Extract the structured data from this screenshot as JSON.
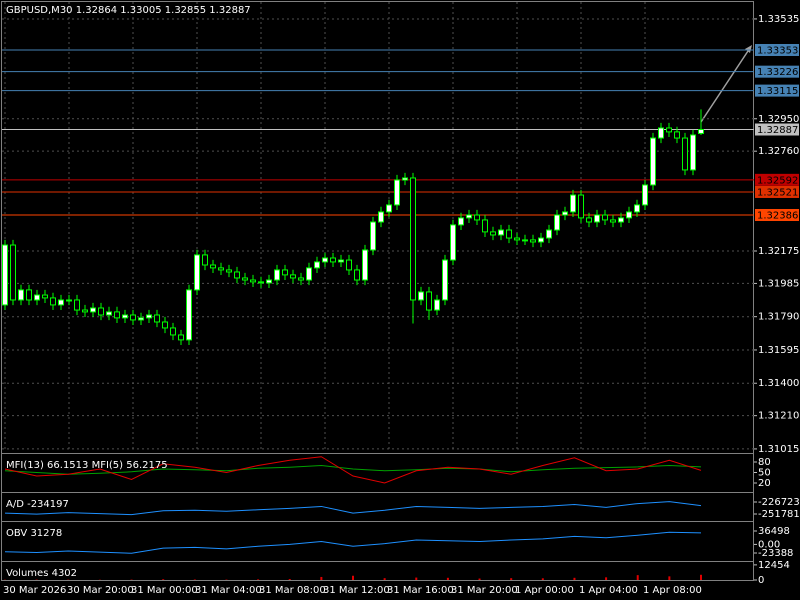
{
  "chart_data": [
    {
      "type": "candlestick",
      "title": "GBPUSD,M30  1.32864 1.33005 1.32855 1.32887",
      "categories": [
        "30 Mar 2026",
        null,
        null,
        null,
        null,
        null,
        null,
        null,
        "30 Mar 20:00",
        null,
        null,
        null,
        null,
        null,
        null,
        null,
        "31 Mar 00:00",
        null,
        null,
        null,
        null,
        null,
        null,
        null,
        "31 Mar 04:00",
        null,
        null,
        null,
        null,
        null,
        null,
        null,
        "31 Mar 08:00",
        null,
        null,
        null,
        null,
        null,
        null,
        null,
        "31 Mar 12:00",
        null,
        null,
        null,
        null,
        null,
        null,
        null,
        "31 Mar 16:00",
        null,
        null,
        null,
        null,
        null,
        null,
        null,
        "31 Mar 20:00",
        null,
        null,
        null,
        null,
        null,
        null,
        null,
        "1 Apr 00:00",
        null,
        null,
        null,
        null,
        null,
        null,
        null,
        "1 Apr 04:00",
        null,
        null,
        null,
        null,
        null,
        null,
        null,
        "1 Apr 08:00",
        null,
        null,
        null,
        null,
        null,
        null,
        null
      ],
      "open": [
        1.31859,
        1.3221,
        1.31888,
        1.31947,
        1.31888,
        1.31917,
        1.319,
        1.31859,
        1.31888,
        1.31888,
        1.31829,
        1.31818,
        1.31841,
        1.318,
        1.31818,
        1.31783,
        1.318,
        1.31771,
        1.31783,
        1.318,
        1.31759,
        1.31724,
        1.31683,
        1.31654,
        1.31947,
        1.32152,
        1.32093,
        1.32076,
        1.32064,
        1.32052,
        1.32017,
        1.32005,
        1.31994,
        1.31988,
        1.32005,
        1.32064,
        1.32035,
        1.32017,
        1.32005,
        1.32076,
        1.32111,
        1.32134,
        1.32111,
        1.32122,
        1.32064,
        1.32005,
        1.32181,
        1.32345,
        1.32404,
        1.32445,
        1.32591,
        1.32603,
        1.31888,
        1.31935,
        1.31829,
        1.31888,
        1.32122,
        1.32328,
        1.32369,
        1.32386,
        1.32357,
        1.32287,
        1.32269,
        1.32298,
        1.32251,
        1.3224,
        1.3224,
        1.32228,
        1.32251,
        1.32298,
        1.32386,
        1.32404,
        1.32503,
        1.32369,
        1.32345,
        1.32386,
        1.32357,
        1.32345,
        1.32369,
        1.32404,
        1.32445,
        1.32562,
        1.32837,
        1.32896,
        1.32873,
        1.32837,
        1.3265,
        1.32864
      ],
      "high": [
        1.3224,
        1.3224,
        1.31977,
        1.31977,
        1.31947,
        1.31947,
        1.3193,
        1.31918,
        1.31918,
        1.31918,
        1.31859,
        1.31871,
        1.31871,
        1.31848,
        1.31848,
        1.3183,
        1.3183,
        1.31813,
        1.3183,
        1.3183,
        1.31789,
        1.31754,
        1.31713,
        1.31977,
        1.32182,
        1.32182,
        1.32123,
        1.32106,
        1.32094,
        1.32082,
        1.32047,
        1.32035,
        1.32024,
        1.32035,
        1.32094,
        1.32094,
        1.32065,
        1.32047,
        1.32106,
        1.32141,
        1.32164,
        1.32164,
        1.32152,
        1.32152,
        1.32094,
        1.32211,
        1.32375,
        1.32434,
        1.32475,
        1.32621,
        1.32633,
        1.32633,
        1.31965,
        1.31965,
        1.31918,
        1.32152,
        1.32358,
        1.32399,
        1.32416,
        1.32416,
        1.32387,
        1.32317,
        1.32328,
        1.32328,
        1.32281,
        1.3227,
        1.3227,
        1.32281,
        1.32328,
        1.32416,
        1.32434,
        1.32533,
        1.32533,
        1.32399,
        1.32416,
        1.32416,
        1.32387,
        1.32399,
        1.32434,
        1.32475,
        1.32592,
        1.32867,
        1.32926,
        1.32926,
        1.32903,
        1.32867,
        1.32885,
        1.33005
      ],
      "low": [
        1.31829,
        1.31858,
        1.31858,
        1.31858,
        1.31858,
        1.3187,
        1.31829,
        1.31829,
        1.31858,
        1.31799,
        1.31788,
        1.31788,
        1.3177,
        1.3177,
        1.31753,
        1.31753,
        1.31741,
        1.31741,
        1.31753,
        1.31729,
        1.31694,
        1.31653,
        1.31624,
        1.31624,
        1.31917,
        1.32063,
        1.32046,
        1.32034,
        1.32022,
        1.31987,
        1.31975,
        1.31964,
        1.31958,
        1.31958,
        1.31975,
        1.32005,
        1.31987,
        1.31975,
        1.31975,
        1.32046,
        1.32081,
        1.32081,
        1.32081,
        1.32034,
        1.31975,
        1.31975,
        1.32151,
        1.32315,
        1.32374,
        1.32415,
        1.32561,
        1.3175,
        1.31858,
        1.31771,
        1.31799,
        1.31858,
        1.32092,
        1.32298,
        1.32339,
        1.32327,
        1.32257,
        1.32239,
        1.32239,
        1.32221,
        1.3221,
        1.3221,
        1.32198,
        1.32198,
        1.32221,
        1.32268,
        1.32356,
        1.32374,
        1.32339,
        1.32315,
        1.32315,
        1.32327,
        1.32315,
        1.32315,
        1.32339,
        1.32374,
        1.32415,
        1.32532,
        1.32807,
        1.32843,
        1.32807,
        1.3262,
        1.3262,
        1.32855
      ],
      "close": [
        1.3221,
        1.31888,
        1.31947,
        1.31888,
        1.31917,
        1.319,
        1.31859,
        1.31888,
        1.31888,
        1.31829,
        1.31818,
        1.31841,
        1.318,
        1.31818,
        1.31783,
        1.318,
        1.31771,
        1.31783,
        1.318,
        1.31759,
        1.31724,
        1.31683,
        1.31654,
        1.31947,
        1.32152,
        1.32093,
        1.32076,
        1.32064,
        1.32052,
        1.32017,
        1.32005,
        1.31994,
        1.31988,
        1.32005,
        1.32064,
        1.32035,
        1.32017,
        1.32005,
        1.32076,
        1.32111,
        1.32134,
        1.32111,
        1.32122,
        1.32064,
        1.32005,
        1.32181,
        1.32345,
        1.32404,
        1.32445,
        1.32591,
        1.32603,
        1.31888,
        1.31935,
        1.31829,
        1.31888,
        1.32122,
        1.32328,
        1.32369,
        1.32386,
        1.32357,
        1.32287,
        1.32269,
        1.32298,
        1.32251,
        1.3224,
        1.3224,
        1.32228,
        1.32251,
        1.32298,
        1.32386,
        1.32404,
        1.32503,
        1.32369,
        1.32345,
        1.32386,
        1.32357,
        1.32345,
        1.32369,
        1.32404,
        1.32445,
        1.32562,
        1.32837,
        1.32896,
        1.32873,
        1.32837,
        1.3265,
        1.32855,
        1.32887
      ],
      "up_color": "#ffffff",
      "down_color": "#000000",
      "wick_color": "#00ff00",
      "ylim": [
        1.30997,
        1.33646
      ],
      "yticks": [
        1.33535,
        {
          "value": 1.3295,
          "label": "1.32950"
        },
        {
          "value": 1.3276,
          "label": "1.32760"
        },
        1.32175,
        1.31985,
        {
          "value": 1.3179,
          "label": "1.31790"
        },
        1.31595,
        {
          "value": 1.314,
          "label": "1.31400"
        },
        {
          "value": 1.3121,
          "label": "1.31210"
        },
        1.31015
      ],
      "grid": true,
      "hlines": [
        {
          "value": 1.33353,
          "color": "#4682b4"
        },
        {
          "value": 1.33226,
          "color": "#4682b4"
        },
        {
          "value": 1.33115,
          "color": "#4682b4"
        },
        {
          "value": 1.32887,
          "color": "#c0c0c0"
        },
        {
          "value": 1.32592,
          "color": "#c00000"
        },
        {
          "value": 1.32521,
          "color": "#e03000"
        },
        {
          "value": 1.32386,
          "color": "#ff4500"
        }
      ]
    },
    {
      "type": "line",
      "title": "MFI(13) 66.1513  MFI(5) 56.2175",
      "ylim": [
        0,
        100
      ],
      "yticks": [
        80,
        50,
        20
      ],
      "series": [
        {
          "color": "#00a000",
          "values": [
            55,
            50,
            45,
            48,
            52,
            60,
            58,
            55,
            62,
            65,
            70,
            60,
            55,
            58,
            62,
            60,
            52,
            58,
            62,
            64,
            66,
            70,
            66
          ]
        },
        {
          "color": "#e00000",
          "values": [
            60,
            40,
            45,
            60,
            30,
            75,
            65,
            50,
            70,
            85,
            95,
            40,
            20,
            55,
            65,
            60,
            45,
            70,
            92,
            55,
            60,
            85,
            56
          ]
        }
      ]
    },
    {
      "type": "line",
      "title": "A/D -234197",
      "ylim": [
        -264309,
        -210019
      ],
      "yticks": [
        -226723,
        -251781
      ],
      "series": [
        {
          "color": "#1e90ff",
          "values": [
            -250000,
            -252000,
            -249000,
            -251000,
            -253000,
            -245000,
            -244000,
            -246000,
            -243000,
            -240000,
            -236000,
            -250000,
            -244000,
            -236000,
            -238000,
            -240000,
            -238000,
            -236000,
            -232000,
            -238000,
            -230000,
            -226000,
            -234197
          ]
        }
      ]
    },
    {
      "type": "line",
      "title": "OBV 31278",
      "ylim": [
        -42442,
        58274
      ],
      "yticks": [
        36498,
        {
          "value": 0,
          "label": "0.00"
        },
        -23388
      ],
      "series": [
        {
          "color": "#1e90ff",
          "values": [
            -20000,
            -22000,
            -18000,
            -21000,
            -24000,
            -10000,
            -8000,
            -12000,
            -5000,
            0,
            8000,
            -5000,
            2000,
            12000,
            10000,
            8000,
            12000,
            15000,
            22000,
            18000,
            25000,
            33000,
            31278
          ]
        }
      ]
    },
    {
      "type": "bar",
      "title": "Volumes 4302",
      "ylim": [
        0,
        14000
      ],
      "yticks": [
        12454,
        0
      ],
      "color": "#e00000",
      "values": [
        200,
        300,
        250,
        200,
        300,
        600,
        400,
        300,
        500,
        800,
        2500,
        3500,
        1500,
        2000,
        1800,
        1200,
        1500,
        1400,
        1800,
        2200,
        4000,
        3000,
        4302
      ]
    }
  ]
}
